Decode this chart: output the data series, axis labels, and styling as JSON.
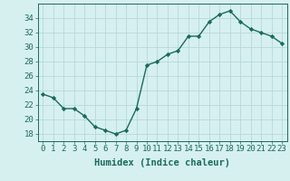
{
  "x": [
    0,
    1,
    2,
    3,
    4,
    5,
    6,
    7,
    8,
    9,
    10,
    11,
    12,
    13,
    14,
    15,
    16,
    17,
    18,
    19,
    20,
    21,
    22,
    23
  ],
  "y": [
    23.5,
    23.0,
    21.5,
    21.5,
    20.5,
    19.0,
    18.5,
    18.0,
    18.5,
    21.5,
    27.5,
    28.0,
    29.0,
    29.5,
    31.5,
    31.5,
    33.5,
    34.5,
    35.0,
    33.5,
    32.5,
    32.0,
    31.5,
    30.5
  ],
  "line_color": "#1a6b5a",
  "marker": "D",
  "markersize": 2.2,
  "bg_color": "#d6f0f0",
  "grid_color": "#b8d8d8",
  "tick_color": "#1a6b5a",
  "xlabel": "Humidex (Indice chaleur)",
  "ylim": [
    17,
    36
  ],
  "yticks": [
    18,
    20,
    22,
    24,
    26,
    28,
    30,
    32,
    34
  ],
  "xtick_labels": [
    "0",
    "1",
    "2",
    "3",
    "4",
    "5",
    "6",
    "7",
    "8",
    "9",
    "10",
    "11",
    "12",
    "13",
    "14",
    "15",
    "16",
    "17",
    "18",
    "19",
    "20",
    "21",
    "22",
    "23"
  ],
  "xlabel_fontsize": 7.5,
  "tick_fontsize": 6.5,
  "linewidth": 1.0
}
